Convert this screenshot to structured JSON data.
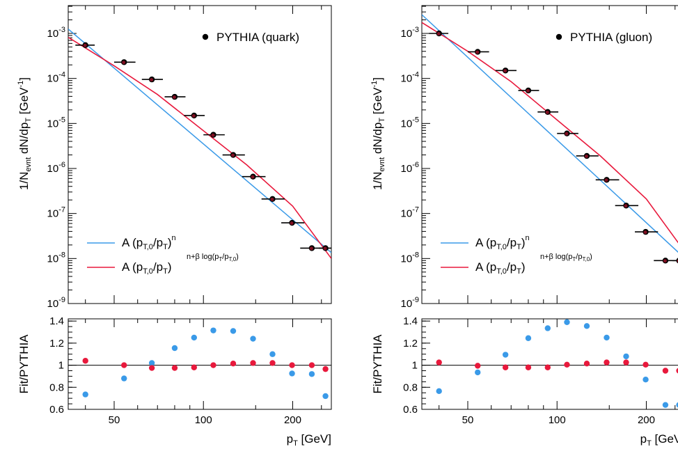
{
  "chart_data": [
    {
      "type": "scatter",
      "panel": "quark",
      "ylabel": "1/N_evnt dN/dp_T [GeV^-1]",
      "xlabel": "p_T [GeV]",
      "xscale": "log",
      "yscale": "log",
      "xlim": [
        35,
        270
      ],
      "ylim": [
        1e-09,
        0.004
      ],
      "x_ticks": [
        "50",
        "100",
        "200"
      ],
      "y_ticks": [
        "10^-9",
        "10^-8",
        "10^-7",
        "10^-6",
        "10^-5",
        "10^-4",
        "10^-3"
      ],
      "legend_data_label": "PYTHIA (quark)",
      "legend_fit1_label": "A (p_T,0/p_T)^n",
      "legend_fit2_label": "A (p_T,0/p_T)^(n+β log(p_T/p_T,0))",
      "legend_placement": "top-right (data), bottom-left (fits)",
      "x": [
        40,
        47,
        53,
        57,
        61,
        67,
        74,
        80,
        87,
        93,
        100,
        107,
        114,
        122,
        130,
        138,
        146,
        155,
        165,
        175,
        185,
        196,
        208,
        220,
        233,
        247,
        260
      ],
      "x_bins": [
        [
          37,
          43
        ],
        [
          50,
          59
        ],
        [
          62,
          73
        ],
        [
          74,
          87
        ],
        [
          86,
          101
        ],
        [
          100,
          118
        ],
        [
          116,
          138
        ],
        [
          135,
          162
        ],
        [
          157,
          188
        ],
        [
          183,
          219
        ],
        [
          212,
          255
        ],
        [
          245,
          270
        ]
      ],
      "x_points": [
        40,
        54,
        67,
        80,
        93,
        108,
        126,
        147,
        171,
        199,
        232,
        258
      ],
      "y_points": [
        0.00055,
        0.00023,
        9.5e-05,
        3.9e-05,
        1.5e-05,
        5.6e-06,
        2e-06,
        6.6e-07,
        2.1e-07,
        6.2e-08,
        1.7e-08,
        1.7e-08
      ],
      "fit_power": {
        "name": "A (p_T,0/p_T)^n",
        "x": [
          35,
          270
        ],
        "y": [
          0.00125,
          1.35e-08
        ]
      },
      "fit_log": {
        "name": "A (p_T,0/p_T)^(n+β log(p_T/p_T,0))",
        "x": [
          35,
          50,
          70,
          100,
          140,
          200,
          270
        ],
        "y": [
          0.00082,
          0.00019,
          4.4e-05,
          6.9e-06,
          1.2e-06,
          1.45e-07,
          1e-08
        ]
      },
      "ratio": {
        "ylabel": "Fit/PYTHIA",
        "ylim": [
          0.6,
          1.42
        ],
        "y_ticks": [
          "0.6",
          "0.8",
          "1",
          "1.2",
          "1.4"
        ],
        "x": [
          40,
          54,
          67,
          80,
          93,
          108,
          126,
          147,
          171,
          199,
          232,
          258
        ],
        "series": [
          {
            "name": "A (p_T,0/p_T)^n",
            "color": "#3a9ae8",
            "values": [
              0.735,
              0.88,
              1.02,
              1.155,
              1.25,
              1.315,
              1.31,
              1.24,
              1.1,
              0.925,
              0.92,
              0.72
            ]
          },
          {
            "name": "A (p_T,0/p_T)^(n+β log(p_T/p_T,0))",
            "color": "#e8193c",
            "values": [
              1.04,
              1.0,
              0.975,
              0.975,
              0.98,
              1.0,
              1.015,
              1.02,
              1.02,
              1.0,
              1.0,
              0.965
            ]
          }
        ]
      }
    },
    {
      "type": "scatter",
      "panel": "gluon",
      "ylabel": "1/N_evnt dN/dp_T [GeV^-1]",
      "xlabel": "p_T [GeV]",
      "xscale": "log",
      "yscale": "log",
      "xlim": [
        35,
        270
      ],
      "ylim": [
        1e-09,
        0.004
      ],
      "x_ticks": [
        "50",
        "100",
        "200"
      ],
      "y_ticks": [
        "10^-9",
        "10^-8",
        "10^-7",
        "10^-6",
        "10^-5",
        "10^-4",
        "10^-3"
      ],
      "legend_data_label": "PYTHIA (gluon)",
      "legend_fit1_label": "A (p_T,0/p_T)^n",
      "legend_fit2_label": "A (p_T,0/p_T)^(n+β log(p_T/p_T,0))",
      "legend_placement": "top-right (data), bottom-left (fits)",
      "x_bins": [
        [
          37,
          43
        ],
        [
          50,
          59
        ],
        [
          62,
          73
        ],
        [
          74,
          87
        ],
        [
          86,
          101
        ],
        [
          100,
          118
        ],
        [
          116,
          138
        ],
        [
          135,
          162
        ],
        [
          157,
          188
        ],
        [
          183,
          219
        ],
        [
          212,
          255
        ],
        [
          245,
          270
        ]
      ],
      "x_points": [
        40,
        54,
        67,
        80,
        93,
        108,
        126,
        147,
        171,
        199,
        232,
        258
      ],
      "y_points": [
        0.001,
        0.00039,
        0.00015,
        5.4e-05,
        1.8e-05,
        6e-06,
        1.9e-06,
        5.6e-07,
        1.5e-07,
        3.9e-08,
        9e-09,
        9e-09
      ],
      "fit_power": {
        "name": "A (p_T,0/p_T)^n",
        "x": [
          35,
          270
        ],
        "y": [
          0.0026,
          1e-08
        ]
      },
      "fit_log": {
        "name": "A (p_T,0/p_T)^(n+β log(p_T/p_T,0))",
        "x": [
          35,
          50,
          70,
          100,
          140,
          200,
          270
        ],
        "y": [
          0.00175,
          0.0004,
          8.5e-05,
          1.2e-05,
          1.9e-06,
          2.1e-07,
          1.4e-08
        ]
      },
      "ratio": {
        "ylabel": "Fit/PYTHIA",
        "ylim": [
          0.6,
          1.42
        ],
        "y_ticks": [
          "0.6",
          "0.8",
          "1",
          "1.2",
          "1.4"
        ],
        "x": [
          40,
          54,
          67,
          80,
          93,
          108,
          126,
          147,
          171,
          199,
          232,
          258
        ],
        "series": [
          {
            "name": "A (p_T,0/p_T)^n",
            "color": "#3a9ae8",
            "values": [
              0.765,
              0.935,
              1.095,
              1.245,
              1.335,
              1.39,
              1.355,
              1.25,
              1.08,
              0.87,
              0.64,
              0.64
            ]
          },
          {
            "name": "A (p_T,0/p_T)^(n+β log(p_T/p_T,0))",
            "color": "#e8193c",
            "values": [
              1.025,
              0.995,
              0.98,
              0.98,
              0.98,
              1.005,
              1.015,
              1.025,
              1.025,
              1.005,
              0.95,
              0.95
            ]
          }
        ]
      }
    }
  ]
}
